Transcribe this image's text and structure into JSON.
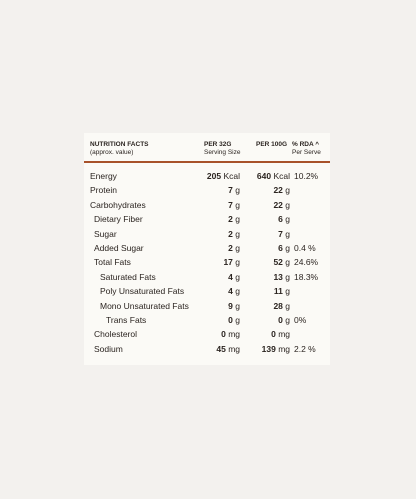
{
  "header": {
    "title": "NUTRITION FACTS",
    "subtitle": "(approx. value)",
    "col_per32": "PER 32G",
    "col_per32_sub": "Serving Size",
    "col_per100": "PER 100G",
    "col_rda": "% RDA ^",
    "col_rda_sub": "Per Serve"
  },
  "rows": [
    {
      "label": "Energy",
      "indent": 0,
      "v32": "205",
      "u32": "Kcal",
      "v100": "640",
      "u100": "Kcal",
      "rda": "10.2%"
    },
    {
      "label": "Protein",
      "indent": 0,
      "v32": "7",
      "u32": "g",
      "v100": "22",
      "u100": "g",
      "rda": ""
    },
    {
      "label": "Carbohydrates",
      "indent": 0,
      "v32": "7",
      "u32": "g",
      "v100": "22",
      "u100": "g",
      "rda": ""
    },
    {
      "label": "Dietary Fiber",
      "indent": 1,
      "v32": "2",
      "u32": "g",
      "v100": "6",
      "u100": "g",
      "rda": ""
    },
    {
      "label": "Sugar",
      "indent": 1,
      "v32": "2",
      "u32": "g",
      "v100": "7",
      "u100": "g",
      "rda": ""
    },
    {
      "label": "Added Sugar",
      "indent": 1,
      "v32": "2",
      "u32": "g",
      "v100": "6",
      "u100": "g",
      "rda": "0.4 %"
    },
    {
      "label": "Total Fats",
      "indent": 1,
      "v32": "17",
      "u32": "g",
      "v100": "52",
      "u100": "g",
      "rda": "24.6%"
    },
    {
      "label": "Saturated Fats",
      "indent": 2,
      "v32": "4",
      "u32": "g",
      "v100": "13",
      "u100": "g",
      "rda": "18.3%"
    },
    {
      "label": "Poly Unsaturated Fats",
      "indent": 2,
      "v32": "4",
      "u32": "g",
      "v100": "11",
      "u100": "g",
      "rda": ""
    },
    {
      "label": "Mono Unsaturated Fats",
      "indent": 2,
      "v32": "9",
      "u32": "g",
      "v100": "28",
      "u100": "g",
      "rda": ""
    },
    {
      "label": "Trans Fats",
      "indent": 3,
      "v32": "0",
      "u32": "g",
      "v100": "0",
      "u100": "g",
      "rda": "0%"
    },
    {
      "label": "Cholesterol",
      "indent": 1,
      "v32": "0",
      "u32": "mg",
      "v100": "0",
      "u100": "mg",
      "rda": ""
    },
    {
      "label": "Sodium",
      "indent": 1,
      "v32": "45",
      "u32": "mg",
      "v100": "139",
      "u100": "mg",
      "rda": "2.2 %"
    }
  ]
}
